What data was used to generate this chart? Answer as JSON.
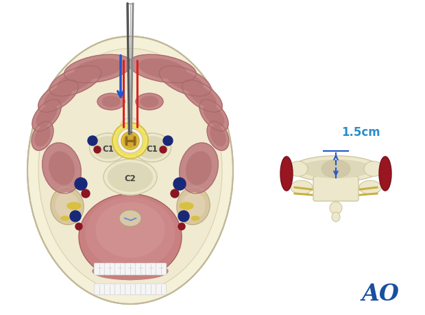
{
  "bg_color": "#ffffff",
  "ao_text": "AO",
  "ao_color": "#1a4fa0",
  "label_15cm": "1.5cm",
  "label_color": "#2b8ccc",
  "muscle_color": "#c48888",
  "muscle_mid": "#b87878",
  "muscle_dark": "#a86868",
  "bone_color": "#ede8cc",
  "bone_mid": "#ddd8b8",
  "bone_dark": "#ccc8a0",
  "cord_yellow": "#e8c840",
  "cord_outer": "#f5e060",
  "fat_color": "#f5f0d8",
  "fat_outer": "#ece4c0",
  "vessel_red": "#8b1520",
  "vessel_blue": "#1a2878",
  "red_line": "#dd2020",
  "blue_arrow": "#2255cc",
  "skin_line": "#c0b898",
  "c1_label": "C1",
  "c2_label": "C2"
}
